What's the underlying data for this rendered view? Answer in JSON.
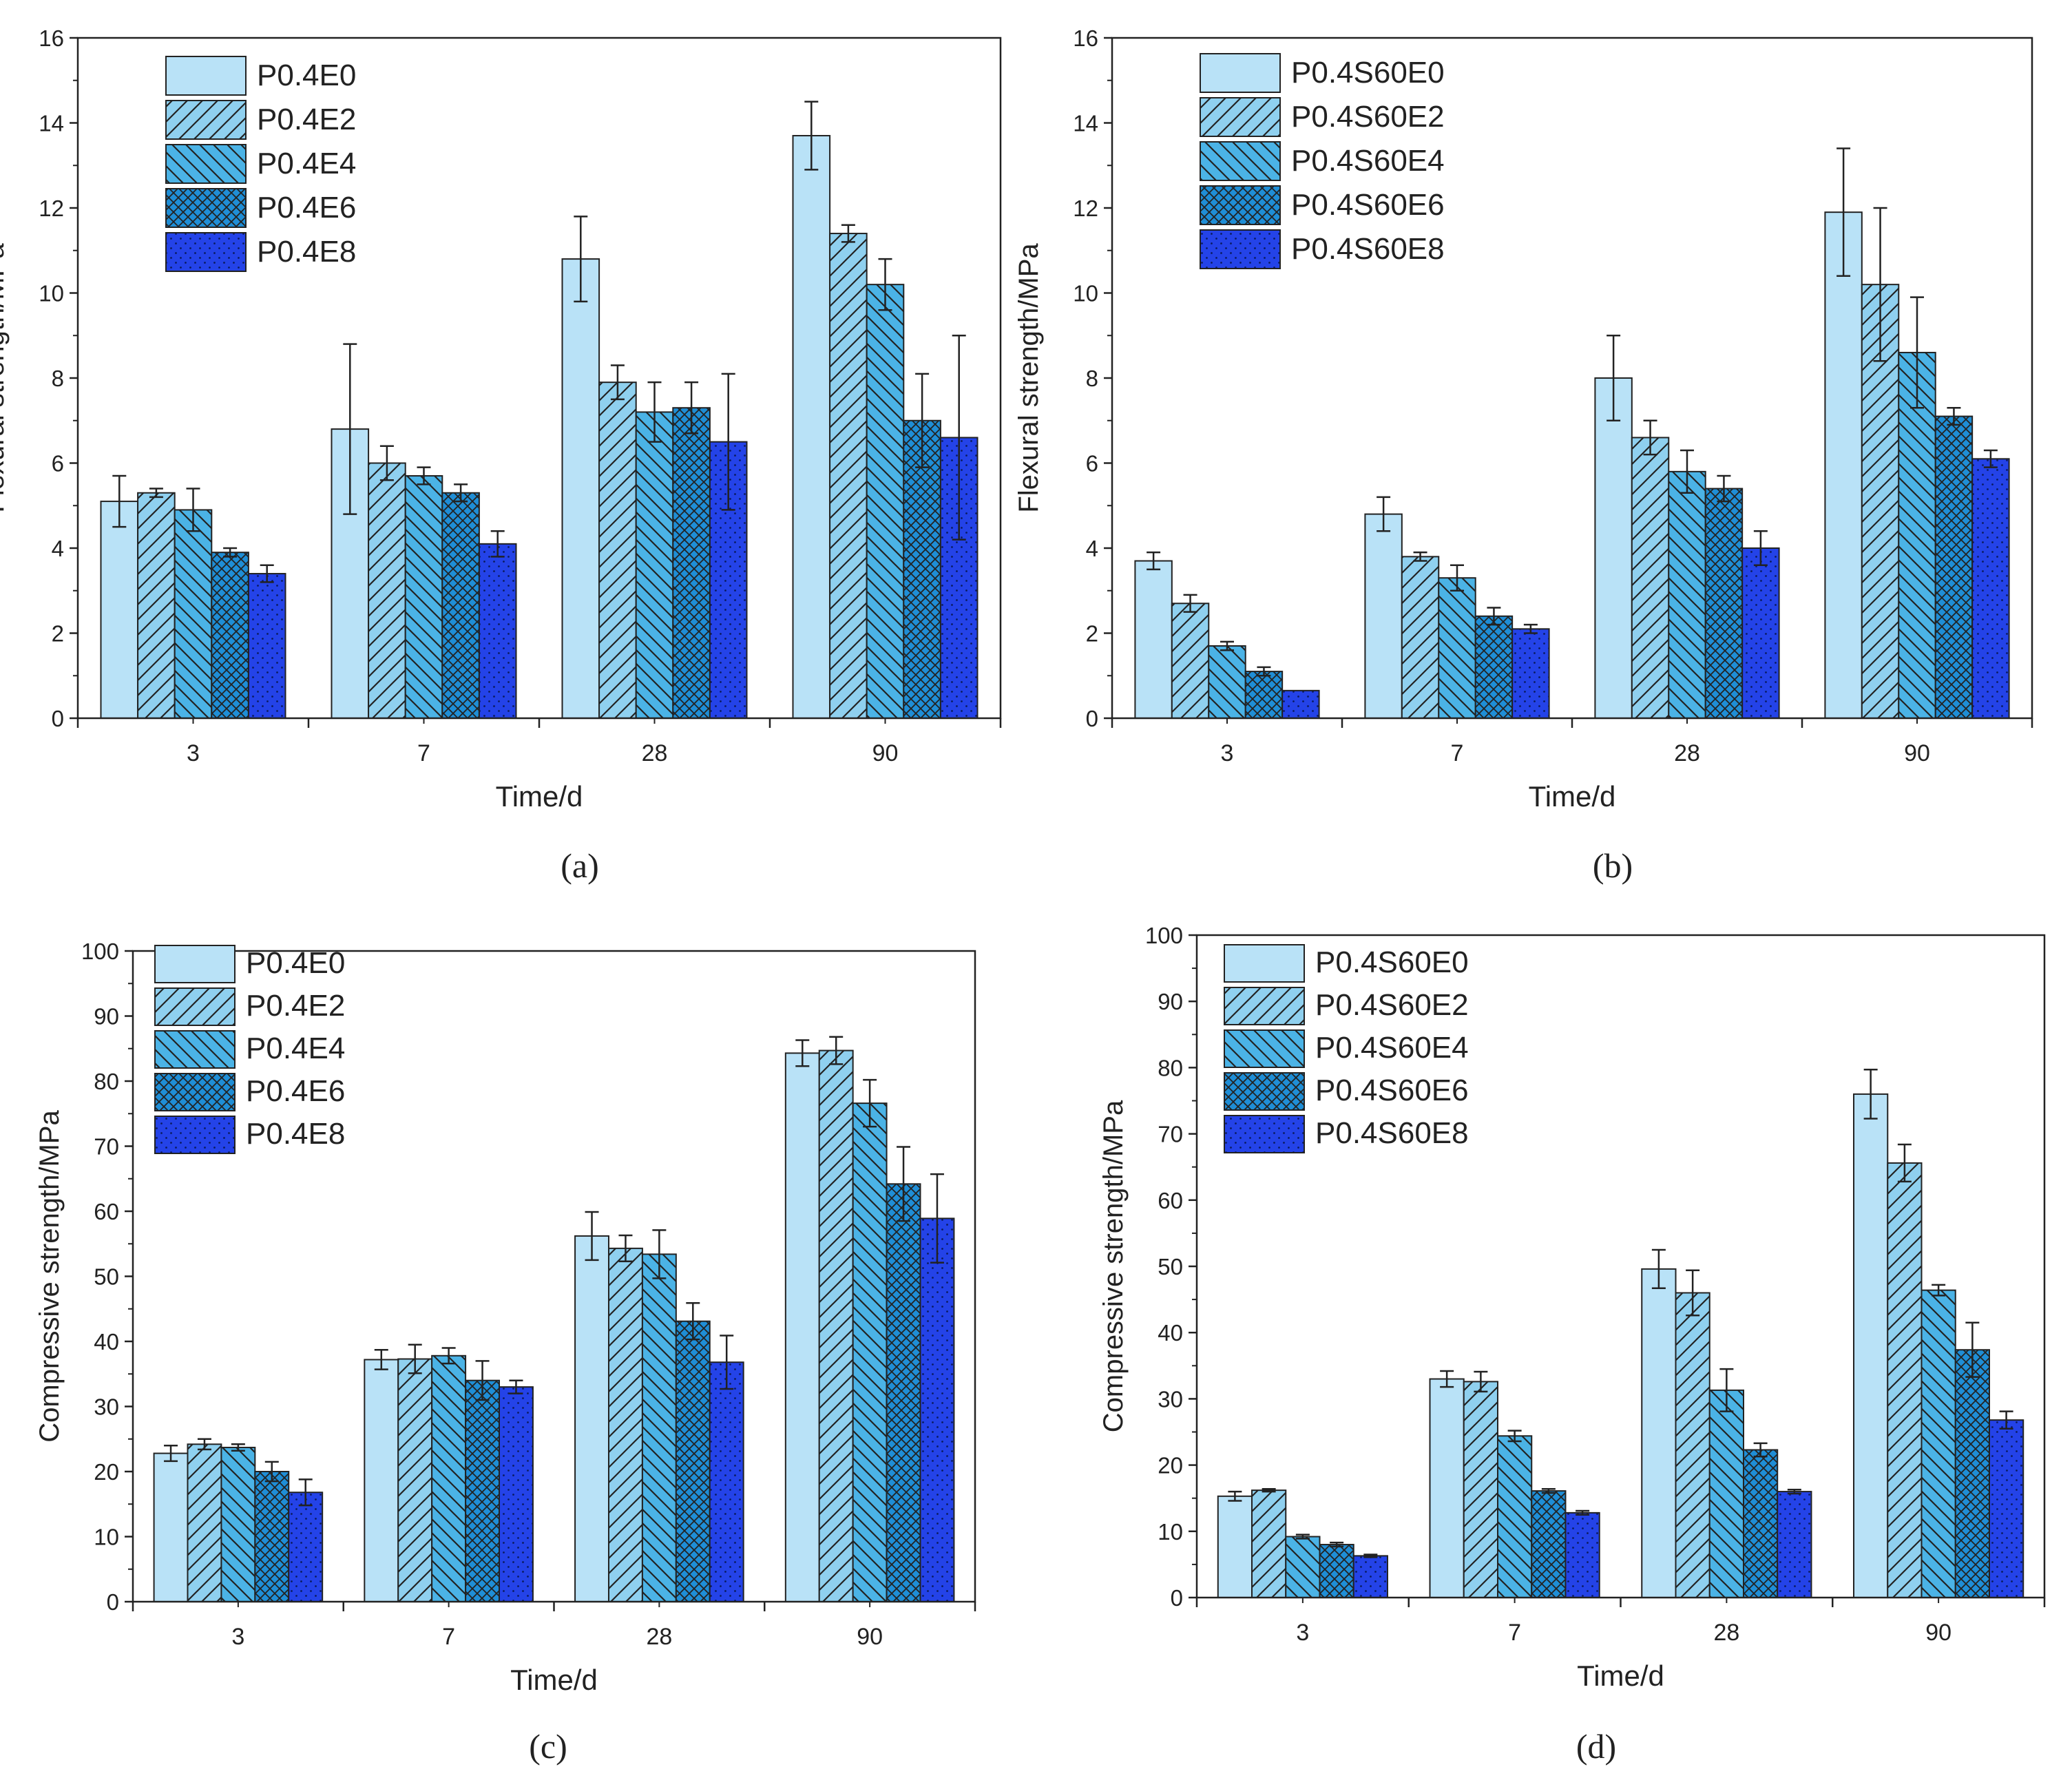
{
  "colors": {
    "E0": "#b9e2f7",
    "E2": "#8fd0ef",
    "E4": "#4bb3e6",
    "E6": "#1f8ed6",
    "E8": "#2443e8",
    "axis": "#222222"
  },
  "chart_data": [
    {
      "type": "bar",
      "caption": "(a)",
      "xlabel": "Time/d",
      "ylabel": "Flexural strength/MPa",
      "categories": [
        "3",
        "7",
        "28",
        "90"
      ],
      "ylim": [
        0,
        16
      ],
      "yticks": [
        "0",
        "2",
        "4",
        "6",
        "8",
        "10",
        "12",
        "14",
        "16"
      ],
      "legend_position": "top-left",
      "series": [
        {
          "name": "P0.4E0",
          "pattern": "solid",
          "values": [
            5.1,
            6.8,
            10.8,
            13.7
          ],
          "errors": [
            0.6,
            2.0,
            1.0,
            0.8
          ]
        },
        {
          "name": "P0.4E2",
          "pattern": "hatch-fwd",
          "values": [
            5.3,
            6.0,
            7.9,
            11.4
          ],
          "errors": [
            0.1,
            0.4,
            0.4,
            0.2
          ]
        },
        {
          "name": "P0.4E4",
          "pattern": "hatch-back",
          "values": [
            4.9,
            5.7,
            7.2,
            10.2
          ],
          "errors": [
            0.5,
            0.2,
            0.7,
            0.6
          ]
        },
        {
          "name": "P0.4E6",
          "pattern": "crosshatch",
          "values": [
            3.9,
            5.3,
            7.3,
            7.0
          ],
          "errors": [
            0.1,
            0.2,
            0.6,
            1.1
          ]
        },
        {
          "name": "P0.4E8",
          "pattern": "dots",
          "values": [
            3.4,
            4.1,
            6.5,
            6.6
          ],
          "errors": [
            0.2,
            0.3,
            1.6,
            2.4
          ]
        }
      ]
    },
    {
      "type": "bar",
      "caption": "(b)",
      "xlabel": "Time/d",
      "ylabel": "Flexural strength/MPa",
      "categories": [
        "3",
        "7",
        "28",
        "90"
      ],
      "ylim": [
        0,
        16
      ],
      "yticks": [
        "0",
        "2",
        "4",
        "6",
        "8",
        "10",
        "12",
        "14",
        "16"
      ],
      "legend_position": "top-left",
      "series": [
        {
          "name": "P0.4S60E0",
          "pattern": "solid",
          "values": [
            3.7,
            4.8,
            8.0,
            11.9
          ],
          "errors": [
            0.2,
            0.4,
            1.0,
            1.5
          ]
        },
        {
          "name": "P0.4S60E2",
          "pattern": "hatch-fwd",
          "values": [
            2.7,
            3.8,
            6.6,
            10.2
          ],
          "errors": [
            0.2,
            0.1,
            0.4,
            1.8
          ]
        },
        {
          "name": "P0.4S60E4",
          "pattern": "hatch-back",
          "values": [
            1.7,
            3.3,
            5.8,
            8.6
          ],
          "errors": [
            0.1,
            0.3,
            0.5,
            1.3
          ]
        },
        {
          "name": "P0.4S60E6",
          "pattern": "crosshatch",
          "values": [
            1.1,
            2.4,
            5.4,
            7.1
          ],
          "errors": [
            0.1,
            0.2,
            0.3,
            0.2
          ]
        },
        {
          "name": "P0.4S60E8",
          "pattern": "dots",
          "values": [
            0.65,
            2.1,
            4.0,
            6.1
          ],
          "errors": [
            0.0,
            0.1,
            0.4,
            0.2
          ]
        }
      ]
    },
    {
      "type": "bar",
      "caption": "(c)",
      "xlabel": "Time/d",
      "ylabel": "Compressive strength/MPa",
      "categories": [
        "3",
        "7",
        "28",
        "90"
      ],
      "ylim": [
        0,
        100
      ],
      "yticks": [
        "0",
        "10",
        "20",
        "30",
        "40",
        "50",
        "60",
        "70",
        "80",
        "90",
        "100"
      ],
      "legend_position": "top-left",
      "series": [
        {
          "name": "P0.4E0",
          "pattern": "solid",
          "values": [
            22.8,
            37.2,
            56.2,
            84.3
          ],
          "errors": [
            1.2,
            1.5,
            3.7,
            2.0
          ]
        },
        {
          "name": "P0.4E2",
          "pattern": "hatch-fwd",
          "values": [
            24.2,
            37.3,
            54.3,
            84.7
          ],
          "errors": [
            0.8,
            2.2,
            2.0,
            2.1
          ]
        },
        {
          "name": "P0.4E4",
          "pattern": "hatch-back",
          "values": [
            23.7,
            37.8,
            53.4,
            76.6
          ],
          "errors": [
            0.5,
            1.2,
            3.7,
            3.6
          ]
        },
        {
          "name": "P0.4E6",
          "pattern": "crosshatch",
          "values": [
            20.0,
            34.0,
            43.1,
            64.2
          ],
          "errors": [
            1.5,
            3.0,
            2.8,
            5.7
          ]
        },
        {
          "name": "P0.4E8",
          "pattern": "dots",
          "values": [
            16.8,
            33.0,
            36.8,
            58.9
          ],
          "errors": [
            2.0,
            1.0,
            4.1,
            6.8
          ]
        }
      ]
    },
    {
      "type": "bar",
      "caption": "(d)",
      "xlabel": "Time/d",
      "ylabel": "Compressive strength/MPa",
      "categories": [
        "3",
        "7",
        "28",
        "90"
      ],
      "ylim": [
        0,
        100
      ],
      "yticks": [
        "0",
        "10",
        "20",
        "30",
        "40",
        "50",
        "60",
        "70",
        "80",
        "90",
        "100"
      ],
      "legend_position": "top-left",
      "series": [
        {
          "name": "P0.4S60E0",
          "pattern": "solid",
          "values": [
            15.3,
            33.0,
            49.6,
            76.0
          ],
          "errors": [
            0.7,
            1.2,
            2.9,
            3.7
          ]
        },
        {
          "name": "P0.4S60E2",
          "pattern": "hatch-fwd",
          "values": [
            16.2,
            32.6,
            46.0,
            65.6
          ],
          "errors": [
            0.2,
            1.5,
            3.4,
            2.8
          ]
        },
        {
          "name": "P0.4S60E4",
          "pattern": "hatch-back",
          "values": [
            9.2,
            24.4,
            31.3,
            46.4
          ],
          "errors": [
            0.3,
            0.8,
            3.2,
            0.8
          ]
        },
        {
          "name": "P0.4S60E6",
          "pattern": "crosshatch",
          "values": [
            8.0,
            16.1,
            22.3,
            37.4
          ],
          "errors": [
            0.3,
            0.3,
            1.0,
            4.1
          ]
        },
        {
          "name": "P0.4S60E8",
          "pattern": "dots",
          "values": [
            6.3,
            12.8,
            16.0,
            26.8
          ],
          "errors": [
            0.2,
            0.3,
            0.3,
            1.3
          ]
        }
      ]
    }
  ]
}
